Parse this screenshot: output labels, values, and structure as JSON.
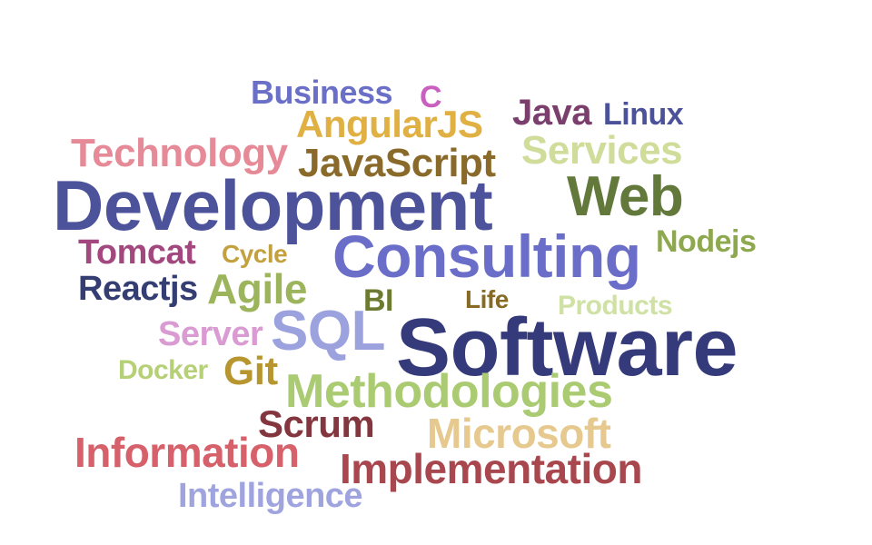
{
  "word_cloud": {
    "words": [
      {
        "text": "Business",
        "color": "#6a6fc8"
      },
      {
        "text": "C",
        "color": "#c95fbf"
      },
      {
        "text": "Java",
        "color": "#7b3f6d"
      },
      {
        "text": "Linux",
        "color": "#4b5299"
      },
      {
        "text": "AngularJS",
        "color": "#e0b042"
      },
      {
        "text": "Technology",
        "color": "#e68a97"
      },
      {
        "text": "JavaScript",
        "color": "#8a6a2a"
      },
      {
        "text": "Services",
        "color": "#cfdc9a"
      },
      {
        "text": "Development",
        "color": "#4d539b"
      },
      {
        "text": "Web",
        "color": "#63793b"
      },
      {
        "text": "Tomcat",
        "color": "#a2487f"
      },
      {
        "text": "Cycle",
        "color": "#c4a13f"
      },
      {
        "text": "Consulting",
        "color": "#6b6ec8"
      },
      {
        "text": "Nodejs",
        "color": "#8ea84f"
      },
      {
        "text": "Reactjs",
        "color": "#353e73"
      },
      {
        "text": "Agile",
        "color": "#9cb45b"
      },
      {
        "text": "BI",
        "color": "#6d7a31"
      },
      {
        "text": "Life",
        "color": "#876a23"
      },
      {
        "text": "Products",
        "color": "#cfe1a4"
      },
      {
        "text": "Server",
        "color": "#d99bd2"
      },
      {
        "text": "SQL",
        "color": "#9ba2de"
      },
      {
        "text": "Software",
        "color": "#353a7a"
      },
      {
        "text": "Docker",
        "color": "#b6d077"
      },
      {
        "text": "Git",
        "color": "#b7962f"
      },
      {
        "text": "Methodologies",
        "color": "#aacb72"
      },
      {
        "text": "Scrum",
        "color": "#84363f"
      },
      {
        "text": "Microsoft",
        "color": "#e6c98e"
      },
      {
        "text": "Information",
        "color": "#d6616b"
      },
      {
        "text": "Implementation",
        "color": "#a9474f"
      },
      {
        "text": "Intelligence",
        "color": "#9fa4df"
      }
    ]
  }
}
